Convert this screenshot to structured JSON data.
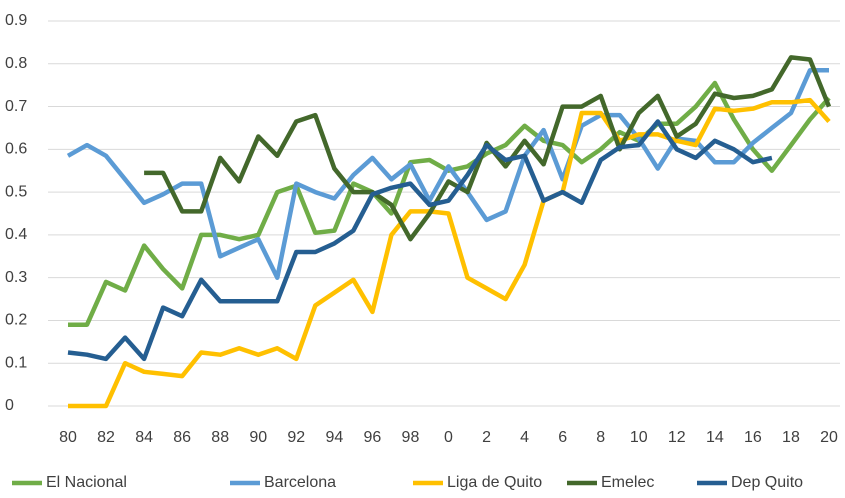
{
  "chart_data": {
    "type": "line",
    "categories": [
      "80",
      null,
      "82",
      null,
      "84",
      null,
      "86",
      null,
      "88",
      null,
      "90",
      null,
      "92",
      null,
      "94",
      null,
      "96",
      null,
      "98",
      null,
      "0",
      null,
      "2",
      null,
      "4",
      null,
      "6",
      null,
      "8",
      null,
      "10",
      null,
      "12",
      null,
      "14",
      null,
      "16",
      null,
      "18",
      null,
      "20"
    ],
    "series": [
      {
        "name": "El Nacional",
        "color": "#70ad47",
        "values": [
          0.19,
          0.19,
          0.29,
          0.27,
          0.375,
          0.32,
          0.275,
          0.4,
          0.4,
          0.39,
          0.4,
          0.5,
          0.515,
          0.405,
          0.41,
          0.52,
          0.5,
          0.45,
          0.57,
          0.575,
          0.55,
          0.56,
          0.59,
          0.61,
          0.655,
          0.62,
          0.61,
          0.57,
          0.6,
          0.64,
          0.62,
          0.66,
          0.66,
          0.7,
          0.755,
          0.67,
          0.6,
          0.55,
          0.61,
          0.67,
          0.72
        ]
      },
      {
        "name": "Barcelona",
        "color": "#5b9bd5",
        "values": [
          0.585,
          0.61,
          0.585,
          0.53,
          0.475,
          0.495,
          0.52,
          0.52,
          0.35,
          0.37,
          0.39,
          0.3,
          0.52,
          0.5,
          0.485,
          0.54,
          0.58,
          0.53,
          0.565,
          0.48,
          0.56,
          0.5,
          0.435,
          0.455,
          0.585,
          0.645,
          0.53,
          0.655,
          0.68,
          0.68,
          0.625,
          0.555,
          0.625,
          0.62,
          0.57,
          0.57,
          0.615,
          0.65,
          0.685,
          0.785,
          0.785
        ]
      },
      {
        "name": "Liga de Quito",
        "color": "#ffc000",
        "values": [
          0,
          0,
          0,
          0.1,
          0.08,
          0.075,
          0.07,
          0.125,
          0.12,
          0.135,
          0.12,
          0.135,
          0.11,
          0.235,
          0.265,
          0.295,
          0.22,
          0.4,
          0.455,
          0.455,
          0.45,
          0.3,
          0.275,
          0.25,
          0.33,
          0.48,
          0.5,
          0.685,
          0.685,
          0.62,
          0.635,
          0.635,
          0.62,
          0.61,
          0.695,
          0.69,
          0.695,
          0.71,
          0.71,
          0.715,
          0.665
        ]
      },
      {
        "name": "Emelec",
        "color": "#43682b",
        "values": [
          null,
          null,
          null,
          null,
          0.545,
          0.545,
          0.455,
          0.455,
          0.58,
          0.525,
          0.63,
          0.585,
          0.665,
          0.68,
          0.555,
          0.5,
          0.5,
          0.47,
          0.39,
          0.45,
          0.525,
          0.5,
          0.615,
          0.56,
          0.62,
          0.565,
          0.7,
          0.7,
          0.725,
          0.6,
          0.685,
          0.725,
          0.63,
          0.66,
          0.73,
          0.72,
          0.725,
          0.74,
          0.815,
          0.81,
          0.7
        ]
      },
      {
        "name": "Dep Quito",
        "color": "#255e91",
        "values": [
          0.125,
          0.12,
          0.11,
          0.16,
          0.11,
          0.23,
          0.21,
          0.295,
          0.245,
          0.245,
          0.245,
          0.245,
          0.36,
          0.36,
          0.38,
          0.41,
          0.495,
          0.51,
          0.52,
          0.47,
          0.48,
          0.54,
          0.61,
          0.575,
          0.585,
          0.48,
          0.5,
          0.475,
          0.575,
          0.605,
          0.61,
          0.665,
          0.6,
          0.58,
          0.62,
          0.6,
          0.57,
          0.58,
          null,
          null,
          null
        ]
      }
    ],
    "ylim": [
      0,
      0.9
    ],
    "yticks": [
      0,
      0.1,
      0.2,
      0.3,
      0.4,
      0.5,
      0.6,
      0.7,
      0.8,
      0.9
    ],
    "grid": true,
    "legend": "bottom"
  }
}
